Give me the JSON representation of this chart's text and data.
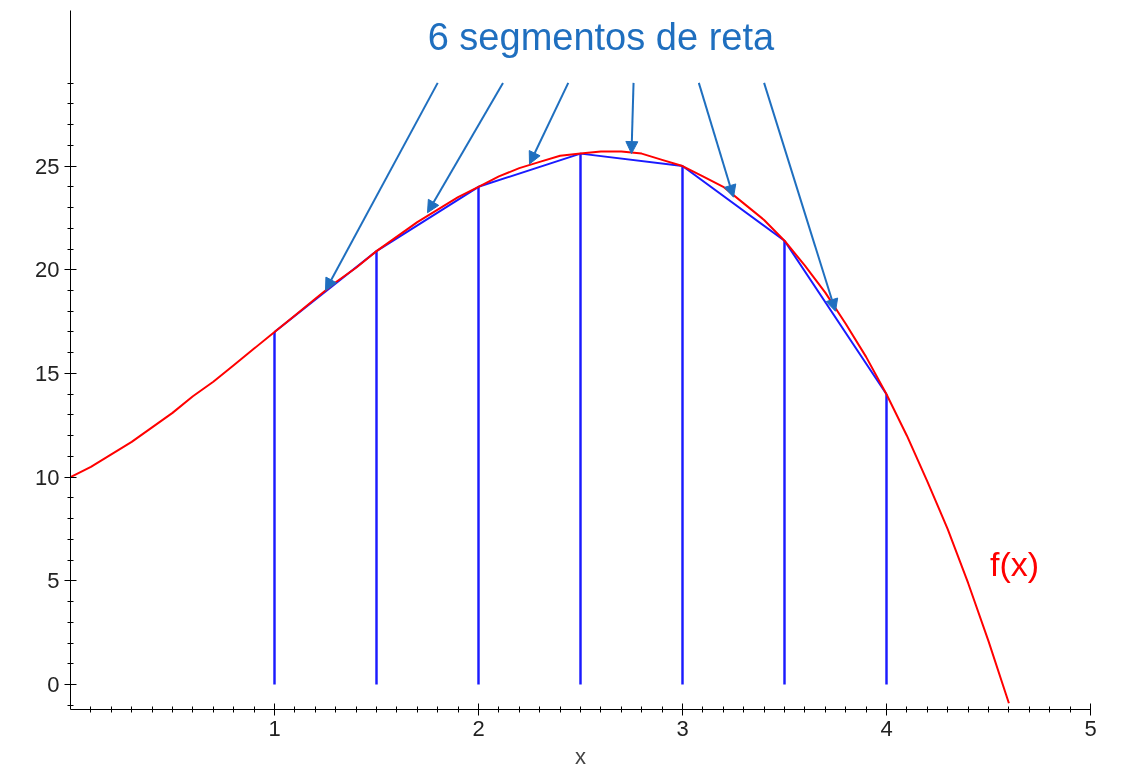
{
  "chart_data": {
    "type": "line",
    "xlabel": "x",
    "annotations": [
      {
        "text": "6 segmentos de reta",
        "x": 1.25,
        "y": 19
      }
    ],
    "xlim": [
      0,
      5
    ],
    "ylim": [
      -1.2,
      32.5
    ],
    "xticks": [
      1,
      2,
      3,
      4,
      5
    ],
    "yticks": [
      0,
      5,
      10,
      15,
      20,
      25
    ],
    "grid": false,
    "marker": "none",
    "line_style": "solid",
    "series": [
      {
        "name": "f(x)",
        "color": "#ff0000",
        "type": "line",
        "x": [
          0,
          0.1,
          0.2,
          0.3,
          0.4,
          0.5,
          0.6,
          0.7,
          0.8,
          0.9,
          1.0,
          1.1,
          1.2,
          1.3,
          1.4,
          1.5,
          1.6,
          1.7,
          1.8,
          1.9,
          2.0,
          2.1,
          2.2,
          2.3,
          2.4,
          2.5,
          2.6,
          2.7,
          2.8,
          2.9,
          3.0,
          3.1,
          3.2,
          3.3,
          3.4,
          3.5,
          3.6,
          3.7,
          3.8,
          3.9,
          4.0,
          4.1,
          4.2,
          4.3,
          4.4,
          4.5,
          4.6
        ],
        "values": [
          10,
          10.5,
          11.1,
          11.7,
          12.4,
          13.1,
          13.9,
          14.6,
          15.4,
          16.2,
          17,
          17.8,
          18.6,
          19.4,
          20.1,
          20.9,
          21.6,
          22.3,
          22.9,
          23.5,
          24,
          24.5,
          24.9,
          25.2,
          25.5,
          25.6,
          25.7,
          25.7,
          25.6,
          25.3,
          25,
          24.5,
          24,
          23.2,
          22.4,
          21.4,
          20.2,
          18.9,
          17.4,
          15.8,
          14,
          12,
          9.8,
          7.5,
          4.9,
          2.1,
          -0.9
        ]
      },
      {
        "color": "#1a1aff",
        "x": [
          1,
          1.5,
          2,
          2.5,
          3,
          3.5,
          4
        ],
        "values": [
          17,
          20.9,
          24,
          25.6,
          25,
          21.4,
          14
        ]
      },
      {
        "color": "#1a1aff",
        "type": "bar",
        "x": [
          1,
          1.5,
          2,
          2.5,
          3,
          3.5,
          4
        ],
        "values": [
          17,
          20.9,
          24,
          25.6,
          25,
          21.4,
          14
        ]
      }
    ]
  }
}
